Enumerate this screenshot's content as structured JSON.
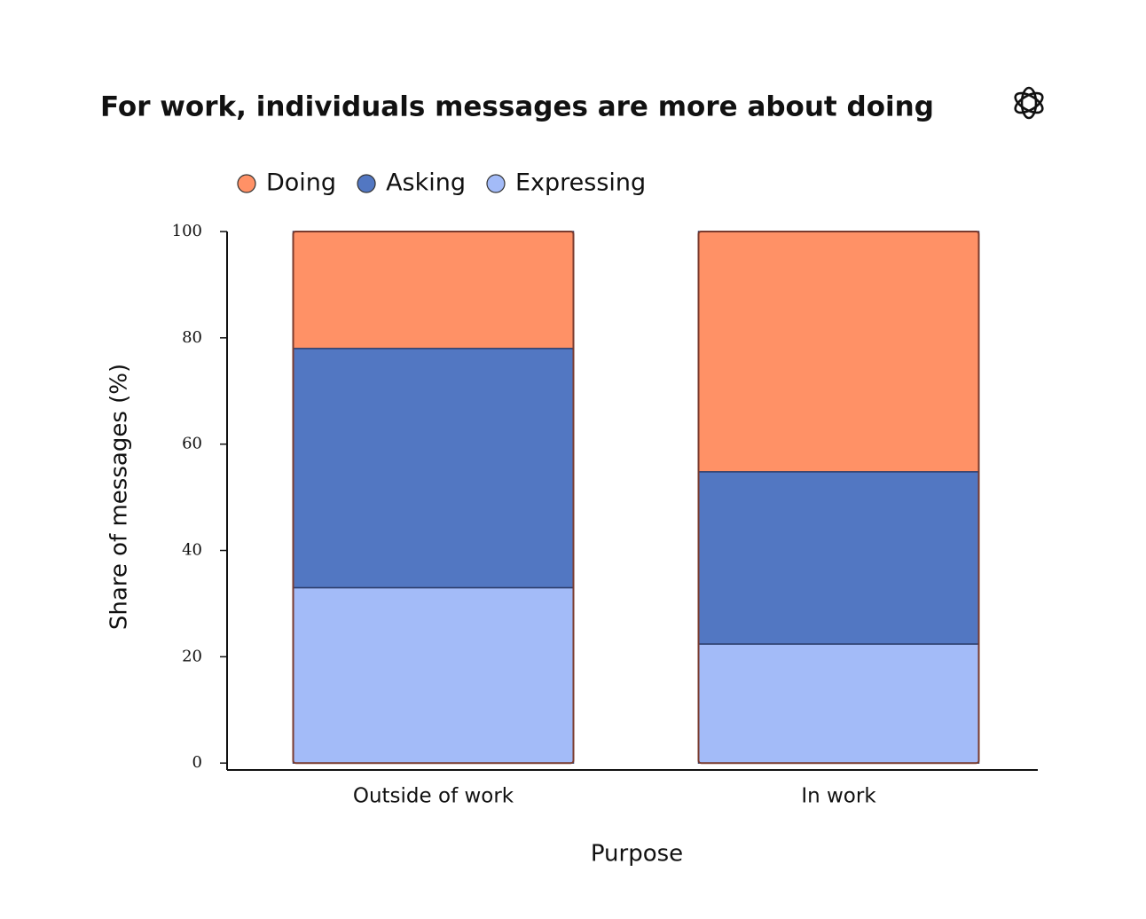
{
  "chart_data": {
    "type": "stacked_bar",
    "title": "For work, individuals messages are more about doing",
    "x_label": "Purpose",
    "y_label": "Share of messages (%)",
    "categories": [
      "Outside of work",
      "In work"
    ],
    "series": [
      {
        "name": "Doing",
        "color": "#ff9166",
        "values": [
          22,
          45.2
        ]
      },
      {
        "name": "Asking",
        "color": "#5277c2",
        "values": [
          45,
          32.4
        ]
      },
      {
        "name": "Expressing",
        "color": "#a3bbf8",
        "values": [
          33,
          22.4
        ]
      }
    ],
    "ylim": [
      -1.3,
      100
    ],
    "yticks": [
      0,
      20,
      40,
      60,
      80,
      100
    ],
    "legend": "top"
  }
}
